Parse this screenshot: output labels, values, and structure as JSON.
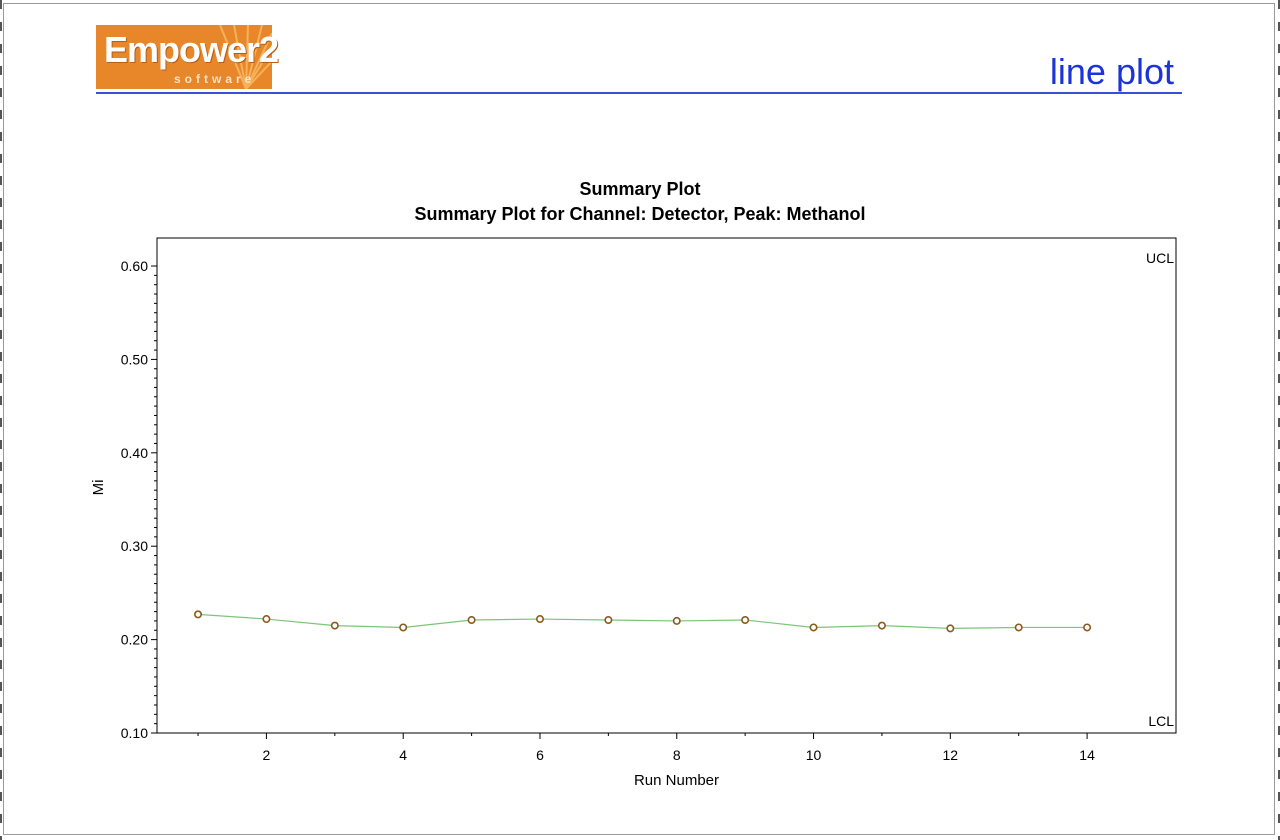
{
  "logo": {
    "name": "Empower2",
    "subtitle": "software"
  },
  "header": {
    "title": "line plot"
  },
  "colors": {
    "header_blue": "#1c34d6",
    "logo_orange": "#e8872a",
    "line_green": "#7cc47c",
    "marker_brown": "#8a5a1e"
  },
  "chart_data": {
    "type": "line",
    "title": "Summary Plot",
    "subtitle": "Summary Plot for Channel: Detector, Peak: Methanol",
    "xlabel": "Run Number",
    "ylabel": "Mi",
    "xlim": [
      0.4,
      15.3
    ],
    "ylim": [
      0.1,
      0.63
    ],
    "xticks": [
      2,
      4,
      6,
      8,
      10,
      12,
      14
    ],
    "xtick_labels": [
      "2",
      "4",
      "6",
      "8",
      "10",
      "12",
      "14"
    ],
    "yticks": [
      0.1,
      0.2,
      0.3,
      0.4,
      0.5,
      0.6
    ],
    "ytick_labels": [
      "0.10",
      "0.20",
      "0.30",
      "0.40",
      "0.50",
      "0.60"
    ],
    "x": [
      1,
      2,
      3,
      4,
      5,
      6,
      7,
      8,
      9,
      10,
      11,
      12,
      13,
      14
    ],
    "series": [
      {
        "values": [
          0.227,
          0.222,
          0.215,
          0.213,
          0.221,
          0.222,
          0.221,
          0.22,
          0.221,
          0.213,
          0.215,
          0.212,
          0.213,
          0.213
        ]
      }
    ],
    "annotations": [
      "UCL",
      "LCL"
    ],
    "grid": false
  }
}
